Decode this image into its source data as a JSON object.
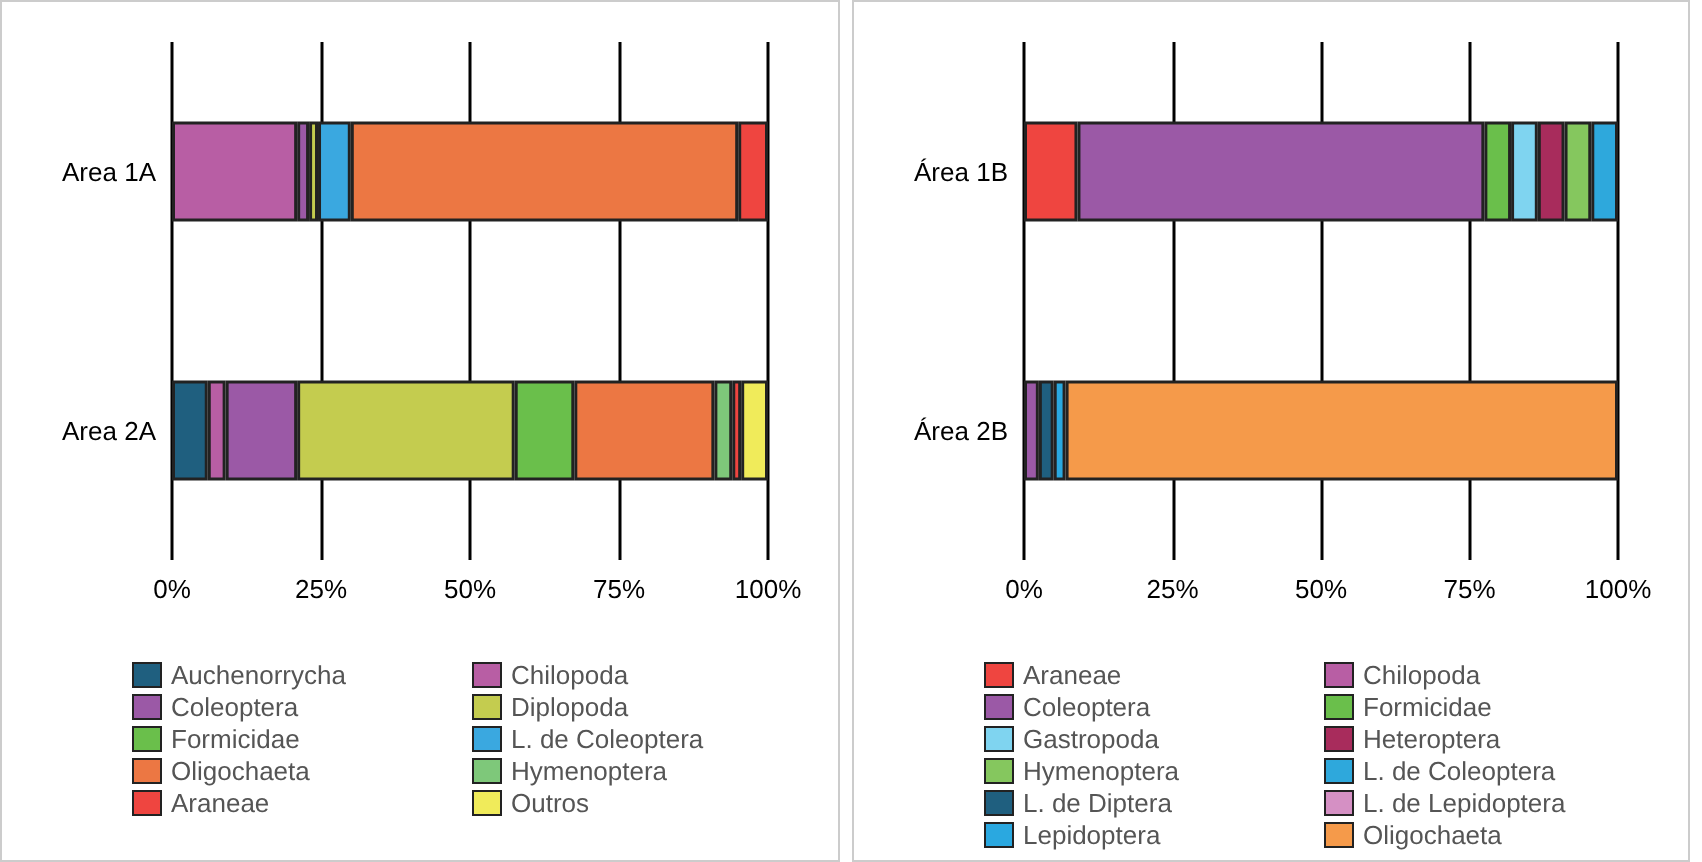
{
  "chart_data": [
    {
      "type": "bar",
      "orientation": "horizontal",
      "stacked": true,
      "categories": [
        "Area 1A",
        "Area 2A"
      ],
      "xlim": [
        0,
        100
      ],
      "xticks": [
        {
          "value": 0,
          "label": "0%"
        },
        {
          "value": 25,
          "label": "25%"
        },
        {
          "value": 50,
          "label": "50%"
        },
        {
          "value": 75,
          "label": "75%"
        },
        {
          "value": 100,
          "label": "100%"
        }
      ],
      "grid": "x",
      "legend": "bottom",
      "series": [
        {
          "name": "Auchenorrycha",
          "color": "#1f5f7f",
          "values": [
            null,
            6
          ]
        },
        {
          "name": "Chilopoda",
          "color": "#b85ea4",
          "values": [
            21,
            3
          ]
        },
        {
          "name": "Coleoptera",
          "color": "#9b59a6",
          "values": [
            2,
            12
          ]
        },
        {
          "name": "Diplopoda",
          "color": "#c4cc4f",
          "values": [
            1.5,
            36.5
          ]
        },
        {
          "name": "Formicidae",
          "color": "#6abf4b",
          "values": [
            null,
            10
          ]
        },
        {
          "name": "L. de Coleoptera",
          "color": "#3aa8e0",
          "values": [
            5.5,
            null
          ]
        },
        {
          "name": "Oligochaeta",
          "color": "#ec7743",
          "values": [
            65,
            23.5
          ]
        },
        {
          "name": "Hymenoptera",
          "color": "#7ec87a",
          "values": [
            null,
            3
          ]
        },
        {
          "name": "Araneae",
          "color": "#ef4540",
          "values": [
            5,
            1.5
          ]
        },
        {
          "name": "Outros",
          "color": "#f0eb5a",
          "values": [
            null,
            4.5
          ]
        }
      ]
    },
    {
      "type": "bar",
      "orientation": "horizontal",
      "stacked": true,
      "categories": [
        "Área 1B",
        "Área 2B"
      ],
      "xlim": [
        0,
        100
      ],
      "xticks": [
        {
          "value": 0,
          "label": "0%"
        },
        {
          "value": 25,
          "label": "25%"
        },
        {
          "value": 50,
          "label": "50%"
        },
        {
          "value": 75,
          "label": "75%"
        },
        {
          "value": 100,
          "label": "100%"
        }
      ],
      "grid": "x",
      "legend": "bottom",
      "series": [
        {
          "name": "Araneae",
          "color": "#ef4540",
          "values": [
            9,
            null
          ]
        },
        {
          "name": "Chilopoda",
          "color": "#b85ea4",
          "values": [
            null,
            null
          ]
        },
        {
          "name": "Coleoptera",
          "color": "#9b59a6",
          "values": [
            68.5,
            2.5
          ]
        },
        {
          "name": "Formicidae",
          "color": "#6abf4b",
          "values": [
            4.5,
            null
          ]
        },
        {
          "name": "Gastropoda",
          "color": "#7fd4f0",
          "values": [
            4.5,
            null
          ]
        },
        {
          "name": "Heteroptera",
          "color": "#a82c5c",
          "values": [
            4.5,
            null
          ]
        },
        {
          "name": "Hymenoptera",
          "color": "#85c75e",
          "values": [
            4.5,
            null
          ]
        },
        {
          "name": "L. de Coleoptera",
          "color": "#2ea8dc",
          "values": [
            4.5,
            null
          ]
        },
        {
          "name": "L. de Diptera",
          "color": "#1f5f7f",
          "values": [
            null,
            2.5
          ]
        },
        {
          "name": "L. de Lepidoptera",
          "color": "#d590c4",
          "values": [
            null,
            null
          ]
        },
        {
          "name": "Lepidoptera",
          "color": "#2aa8e0",
          "values": [
            null,
            2
          ]
        },
        {
          "name": "Oligochaeta",
          "color": "#f59a4a",
          "values": [
            null,
            93
          ]
        }
      ]
    }
  ]
}
